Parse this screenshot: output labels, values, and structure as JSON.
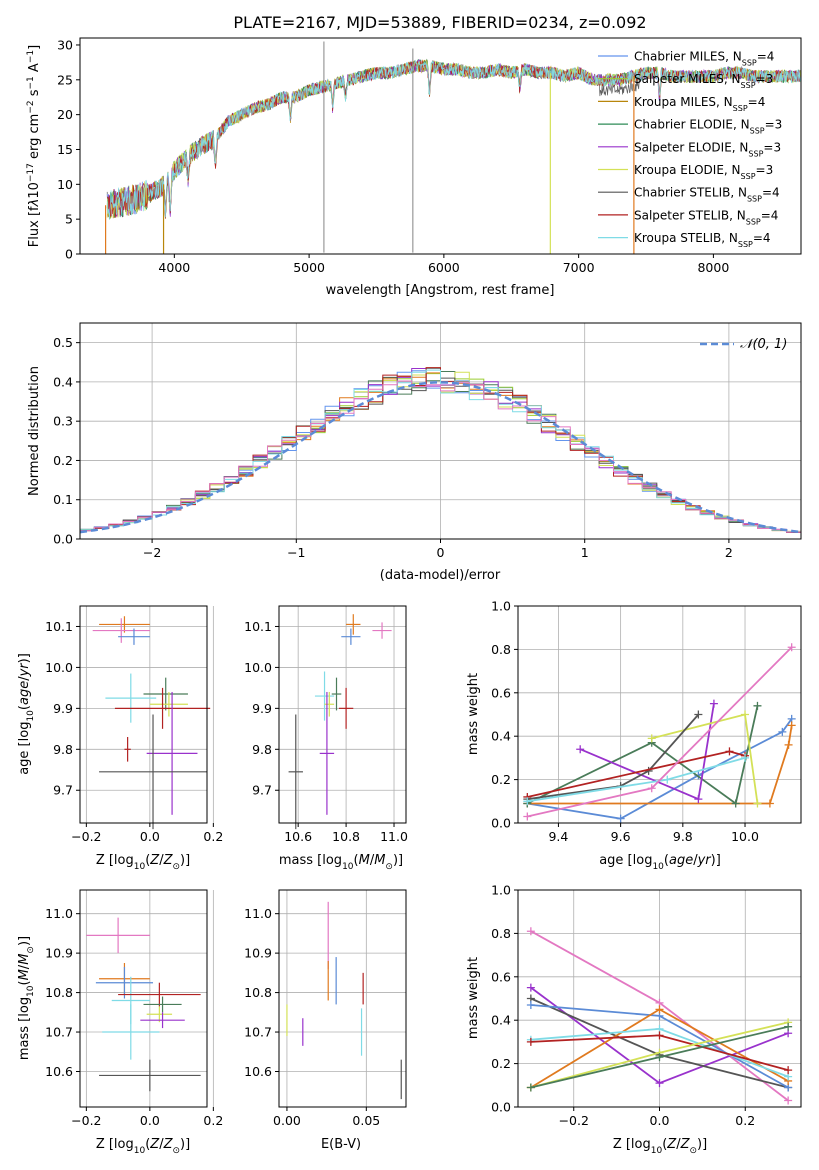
{
  "title": "PLATE=2167, MJD=53889, FIBERID=0234, z=0.092",
  "chart_data": [
    {
      "id": "spectrum",
      "type": "line",
      "xlabel": "wavelength [Angstrom, rest frame]",
      "ylabel": "Flux [f_λ10^-17 erg cm^-2 s^-1 A^-1]",
      "xlim": [
        3300,
        8650
      ],
      "ylim": [
        0,
        31
      ],
      "xticks": [
        4000,
        5000,
        6000,
        7000,
        8000
      ],
      "yticks": [
        0,
        5,
        10,
        15,
        20,
        25,
        30
      ],
      "legend_position": "right",
      "legend": [
        {
          "name": "Chabrier MILES, N_SSP=4",
          "color": "#6495ed"
        },
        {
          "name": "Salpeter MILES, N_SSP=3",
          "color": "#9acd32"
        },
        {
          "name": "Kroupa MILES, N_SSP=4",
          "color": "#b8860b"
        },
        {
          "name": "Chabrier ELODIE, N_SSP=3",
          "color": "#2e8b57"
        },
        {
          "name": "Salpeter ELODIE, N_SSP=3",
          "color": "#9932cc"
        },
        {
          "name": "Kroupa ELODIE, N_SSP=3",
          "color": "#d4e157"
        },
        {
          "name": "Chabrier STELIB, N_SSP=4",
          "color": "#555555"
        },
        {
          "name": "Salpeter STELIB, N_SSP=4",
          "color": "#b22222"
        },
        {
          "name": "Kroupa STELIB, N_SSP=4",
          "color": "#7fdbe6"
        }
      ],
      "spectrum_knots": [
        [
          3500,
          7
        ],
        [
          3600,
          7.5
        ],
        [
          3700,
          7.8
        ],
        [
          3800,
          8.5
        ],
        [
          3900,
          9.5
        ],
        [
          4000,
          12
        ],
        [
          4100,
          14
        ],
        [
          4200,
          15.5
        ],
        [
          4300,
          16.5
        ],
        [
          4400,
          19
        ],
        [
          4500,
          20
        ],
        [
          4600,
          21
        ],
        [
          4700,
          21.5
        ],
        [
          4800,
          22.5
        ],
        [
          4900,
          22.5
        ],
        [
          5000,
          23.5
        ],
        [
          5100,
          24
        ],
        [
          5200,
          24.5
        ],
        [
          5300,
          25
        ],
        [
          5400,
          25.5
        ],
        [
          5500,
          26
        ],
        [
          5600,
          26
        ],
        [
          5700,
          26.5
        ],
        [
          5800,
          27
        ],
        [
          5900,
          27
        ],
        [
          6000,
          26.5
        ],
        [
          6100,
          26.5
        ],
        [
          6200,
          26
        ],
        [
          6300,
          26
        ],
        [
          6400,
          26.5
        ],
        [
          6500,
          26
        ],
        [
          6600,
          26.5
        ],
        [
          6700,
          26
        ],
        [
          6800,
          26
        ],
        [
          6900,
          25.5
        ],
        [
          7000,
          26
        ],
        [
          7100,
          25
        ],
        [
          7200,
          25
        ],
        [
          7300,
          25
        ],
        [
          7400,
          25.5
        ],
        [
          7500,
          26
        ],
        [
          7600,
          26
        ],
        [
          7700,
          25.5
        ],
        [
          7800,
          25.5
        ],
        [
          7900,
          25.5
        ],
        [
          8000,
          25.5
        ],
        [
          8100,
          26
        ],
        [
          8200,
          26
        ],
        [
          8300,
          25.5
        ],
        [
          8400,
          25.5
        ],
        [
          8500,
          25.5
        ],
        [
          8650,
          25.5
        ]
      ]
    },
    {
      "id": "residuals",
      "type": "step-histogram",
      "xlabel": "(data-model)/error",
      "ylabel": "Normed distribution",
      "xlim": [
        -2.5,
        2.5
      ],
      "ylim": [
        0,
        0.55
      ],
      "xticks": [
        -2,
        -1,
        0,
        1,
        2
      ],
      "yticks": [
        0.0,
        0.1,
        0.2,
        0.3,
        0.4,
        0.5
      ],
      "reference_curve": {
        "name": "𝒩(0, 1)",
        "color": "#5b8bd6",
        "style": "dashed"
      },
      "legend_position": "top-right",
      "bins": 50
    },
    {
      "id": "age-vs-Z",
      "type": "errorbar",
      "xlabel": "Z [log10(Z/Z⊙)]",
      "ylabel": "age  [log10(age/yr)]",
      "xlim": [
        -0.22,
        0.18
      ],
      "ylim": [
        9.62,
        10.15
      ],
      "xticks": [
        -0.2,
        0.0,
        0.2
      ],
      "yticks": [
        9.7,
        9.8,
        9.9,
        10.0,
        10.1
      ],
      "points": [
        {
          "x": -0.08,
          "y": 10.105,
          "xerr": 0.08,
          "yerr": 0.02,
          "color": "#e07a1f"
        },
        {
          "x": -0.09,
          "y": 10.09,
          "xerr": 0.09,
          "yerr": 0.03,
          "color": "#e378c2"
        },
        {
          "x": -0.05,
          "y": 10.075,
          "xerr": 0.05,
          "yerr": 0.02,
          "color": "#5b8bd6"
        },
        {
          "x": -0.06,
          "y": 9.925,
          "xerr": 0.08,
          "yerr": 0.06,
          "color": "#7fdbe6"
        },
        {
          "x": 0.05,
          "y": 9.935,
          "xerr": 0.07,
          "yerr": 0.04,
          "color": "#4a7c59"
        },
        {
          "x": 0.06,
          "y": 9.91,
          "xerr": 0.06,
          "yerr": 0.03,
          "color": "#d4e157"
        },
        {
          "x": 0.04,
          "y": 9.9,
          "xerr": 0.15,
          "yerr": 0.05,
          "color": "#b22222"
        },
        {
          "x": -0.07,
          "y": 9.8,
          "xerr": 0.01,
          "yerr": 0.03,
          "color": "#b22222"
        },
        {
          "x": 0.07,
          "y": 9.79,
          "xerr": 0.08,
          "yerr": 0.15,
          "color": "#9932cc"
        },
        {
          "x": 0.01,
          "y": 9.745,
          "xerr": 0.17,
          "yerr": 0.14,
          "color": "#555555"
        }
      ]
    },
    {
      "id": "age-vs-mass",
      "type": "errorbar",
      "xlabel": "mass [log10(M/M⊙)]",
      "ylabel": "",
      "xlim": [
        10.52,
        11.05
      ],
      "ylim": [
        9.62,
        10.15
      ],
      "xticks": [
        10.6,
        10.8,
        11.0
      ],
      "yticks": [
        9.7,
        9.8,
        9.9,
        10.0,
        10.1
      ],
      "points": [
        {
          "x": 10.83,
          "y": 10.105,
          "xerr": 0.03,
          "yerr": 0.025,
          "color": "#e07a1f"
        },
        {
          "x": 10.95,
          "y": 10.09,
          "xerr": 0.04,
          "yerr": 0.02,
          "color": "#e378c2"
        },
        {
          "x": 10.82,
          "y": 10.075,
          "xerr": 0.04,
          "yerr": 0.02,
          "color": "#5b8bd6"
        },
        {
          "x": 10.71,
          "y": 9.93,
          "xerr": 0.04,
          "yerr": 0.06,
          "color": "#7fdbe6"
        },
        {
          "x": 10.76,
          "y": 9.935,
          "xerr": 0.02,
          "yerr": 0.04,
          "color": "#4a7c59"
        },
        {
          "x": 10.73,
          "y": 9.91,
          "xerr": 0.02,
          "yerr": 0.03,
          "color": "#d4e157"
        },
        {
          "x": 10.8,
          "y": 9.9,
          "xerr": 0.03,
          "yerr": 0.05,
          "color": "#b22222"
        },
        {
          "x": 10.72,
          "y": 9.79,
          "xerr": 0.03,
          "yerr": 0.15,
          "color": "#9932cc"
        },
        {
          "x": 10.59,
          "y": 9.745,
          "xerr": 0.03,
          "yerr": 0.14,
          "color": "#555555"
        }
      ]
    },
    {
      "id": "weight-vs-age",
      "type": "line",
      "xlabel": "age  [log10(age/yr)]",
      "ylabel": "mass weight",
      "xlim": [
        9.27,
        10.18
      ],
      "ylim": [
        0,
        1.0
      ],
      "xticks": [
        9.4,
        9.6,
        9.8,
        10.0
      ],
      "yticks": [
        0.0,
        0.2,
        0.4,
        0.6,
        0.8,
        1.0
      ],
      "series": [
        {
          "color": "#5b8bd6",
          "points": [
            [
              9.3,
              0.09
            ],
            [
              9.6,
              0.02
            ],
            [
              9.85,
              0.22
            ],
            [
              10.12,
              0.42
            ],
            [
              10.15,
              0.48
            ]
          ]
        },
        {
          "color": "#e07a1f",
          "points": [
            [
              9.3,
              0.09
            ],
            [
              10.08,
              0.09
            ],
            [
              10.14,
              0.36
            ],
            [
              10.15,
              0.45
            ]
          ]
        },
        {
          "color": "#4a7c59",
          "points": [
            [
              9.3,
              0.09
            ],
            [
              9.7,
              0.37
            ],
            [
              9.97,
              0.09
            ],
            [
              10.04,
              0.54
            ]
          ]
        },
        {
          "color": "#9932cc",
          "points": [
            [
              9.47,
              0.34
            ],
            [
              9.85,
              0.11
            ],
            [
              9.9,
              0.55
            ]
          ]
        },
        {
          "color": "#d4e157",
          "points": [
            [
              9.7,
              0.39
            ],
            [
              10.0,
              0.5
            ],
            [
              10.04,
              0.09
            ]
          ]
        },
        {
          "color": "#555555",
          "points": [
            [
              9.3,
              0.11
            ],
            [
              9.6,
              0.17
            ],
            [
              9.69,
              0.24
            ],
            [
              9.85,
              0.5
            ]
          ]
        },
        {
          "color": "#b22222",
          "points": [
            [
              9.3,
              0.12
            ],
            [
              9.95,
              0.33
            ],
            [
              10.0,
              0.31
            ]
          ]
        },
        {
          "color": "#7fdbe6",
          "points": [
            [
              9.3,
              0.1
            ],
            [
              9.75,
              0.2
            ],
            [
              10.0,
              0.3
            ]
          ]
        },
        {
          "color": "#e378c2",
          "points": [
            [
              9.3,
              0.03
            ],
            [
              9.7,
              0.16
            ],
            [
              10.15,
              0.81
            ]
          ]
        }
      ]
    },
    {
      "id": "mass-vs-Z",
      "type": "errorbar",
      "xlabel": "Z [log10(Z/Z⊙)]",
      "ylabel": "mass [log10(M/M⊙)]",
      "xlim": [
        -0.22,
        0.18
      ],
      "ylim": [
        10.51,
        11.06
      ],
      "xticks": [
        -0.2,
        0.0,
        0.2
      ],
      "yticks": [
        10.6,
        10.7,
        10.8,
        10.9,
        11.0
      ],
      "points": [
        {
          "x": -0.1,
          "y": 10.945,
          "xerr": 0.1,
          "yerr": 0.045,
          "color": "#e378c2"
        },
        {
          "x": -0.08,
          "y": 10.835,
          "xerr": 0.08,
          "yerr": 0.04,
          "color": "#e07a1f"
        },
        {
          "x": -0.08,
          "y": 10.825,
          "xerr": 0.09,
          "yerr": 0.04,
          "color": "#5b8bd6"
        },
        {
          "x": -0.06,
          "y": 10.78,
          "xerr": 0.06,
          "yerr": 0.06,
          "color": "#7fdbe6"
        },
        {
          "x": 0.03,
          "y": 10.795,
          "xerr": 0.13,
          "yerr": 0.03,
          "color": "#b22222"
        },
        {
          "x": 0.04,
          "y": 10.77,
          "xerr": 0.06,
          "yerr": 0.02,
          "color": "#4a7c59"
        },
        {
          "x": 0.03,
          "y": 10.745,
          "xerr": 0.04,
          "yerr": 0.02,
          "color": "#d4e157"
        },
        {
          "x": 0.04,
          "y": 10.73,
          "xerr": 0.07,
          "yerr": 0.02,
          "color": "#9932cc"
        },
        {
          "x": -0.06,
          "y": 10.7,
          "xerr": 0.09,
          "yerr": 0.07,
          "color": "#7fdbe6"
        },
        {
          "x": 0.0,
          "y": 10.59,
          "xerr": 0.16,
          "yerr": 0.04,
          "color": "#555555"
        }
      ]
    },
    {
      "id": "mass-vs-EBV",
      "type": "errorbar",
      "xlabel": "E(B-V)",
      "ylabel": "",
      "xlim": [
        -0.005,
        0.075
      ],
      "ylim": [
        10.51,
        11.06
      ],
      "xticks": [
        0.0,
        0.05
      ],
      "yticks": [
        10.6,
        10.7,
        10.8,
        10.9,
        11.0
      ],
      "points": [
        {
          "x": 0.026,
          "y": 10.945,
          "xerr": 0,
          "yerr": 0.085,
          "color": "#e378c2"
        },
        {
          "x": 0.026,
          "y": 10.83,
          "xerr": 0,
          "yerr": 0.05,
          "color": "#e07a1f"
        },
        {
          "x": 0.031,
          "y": 10.83,
          "xerr": 0,
          "yerr": 0.06,
          "color": "#5b8bd6"
        },
        {
          "x": 0.048,
          "y": 10.81,
          "xerr": 0,
          "yerr": 0.04,
          "color": "#b22222"
        },
        {
          "x": 0.047,
          "y": 10.7,
          "xerr": 0,
          "yerr": 0.06,
          "color": "#7fdbe6"
        },
        {
          "x": 0.0,
          "y": 10.73,
          "xerr": 0,
          "yerr": 0.04,
          "color": "#d4e157"
        },
        {
          "x": 0.01,
          "y": 10.7,
          "xerr": 0,
          "yerr": 0.035,
          "color": "#9932cc"
        },
        {
          "x": 0.072,
          "y": 10.58,
          "xerr": 0,
          "yerr": 0.05,
          "color": "#555555"
        }
      ]
    },
    {
      "id": "weight-vs-Z",
      "type": "line",
      "xlabel": "Z [log10(Z/Z⊙)]",
      "ylabel": "mass weight",
      "xlim": [
        -0.33,
        0.33
      ],
      "ylim": [
        0,
        1.0
      ],
      "xticks": [
        -0.2,
        0.0,
        0.2
      ],
      "yticks": [
        0.0,
        0.2,
        0.4,
        0.6,
        0.8,
        1.0
      ],
      "series": [
        {
          "color": "#e378c2",
          "points": [
            [
              -0.3,
              0.81
            ],
            [
              0.0,
              0.48
            ],
            [
              0.3,
              0.03
            ]
          ]
        },
        {
          "color": "#9932cc",
          "points": [
            [
              -0.3,
              0.55
            ],
            [
              0.0,
              0.11
            ],
            [
              0.3,
              0.34
            ]
          ]
        },
        {
          "color": "#555555",
          "points": [
            [
              -0.3,
              0.5
            ],
            [
              0.0,
              0.24
            ],
            [
              0.3,
              0.09
            ]
          ]
        },
        {
          "color": "#5b8bd6",
          "points": [
            [
              -0.3,
              0.47
            ],
            [
              0.0,
              0.42
            ],
            [
              0.3,
              0.09
            ]
          ]
        },
        {
          "color": "#e07a1f",
          "points": [
            [
              -0.3,
              0.09
            ],
            [
              0.0,
              0.45
            ],
            [
              0.3,
              0.12
            ]
          ]
        },
        {
          "color": "#7fdbe6",
          "points": [
            [
              -0.3,
              0.31
            ],
            [
              0.0,
              0.36
            ],
            [
              0.3,
              0.14
            ]
          ]
        },
        {
          "color": "#b22222",
          "points": [
            [
              -0.3,
              0.3
            ],
            [
              0.0,
              0.33
            ],
            [
              0.3,
              0.17
            ]
          ]
        },
        {
          "color": "#d4e157",
          "points": [
            [
              -0.3,
              0.09
            ],
            [
              0.0,
              0.25
            ],
            [
              0.3,
              0.39
            ]
          ]
        },
        {
          "color": "#4a7c59",
          "points": [
            [
              -0.3,
              0.09
            ],
            [
              0.0,
              0.23
            ],
            [
              0.3,
              0.37
            ]
          ]
        }
      ]
    }
  ]
}
